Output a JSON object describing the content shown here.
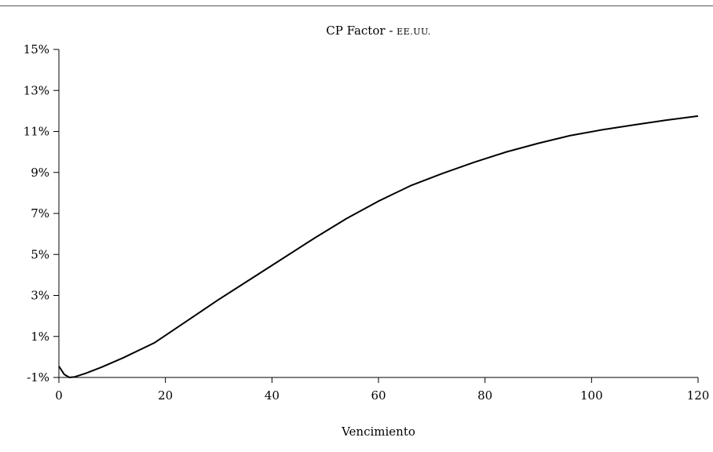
{
  "chart_data": {
    "type": "line",
    "title": "CP Factor",
    "title_separator": " - ",
    "title_suffix": "EE.UU.",
    "xlabel": "Vencimiento",
    "ylabel": "",
    "xlim": [
      0,
      120
    ],
    "ylim": [
      -1,
      15
    ],
    "x_ticks": [
      0,
      20,
      40,
      60,
      80,
      100,
      120
    ],
    "x_tick_labels": [
      "0",
      "20",
      "40",
      "60",
      "80",
      "100",
      "120"
    ],
    "y_ticks": [
      -1,
      1,
      3,
      5,
      7,
      9,
      11,
      13,
      15
    ],
    "y_tick_labels": [
      "-1%",
      "1%",
      "3%",
      "5%",
      "7%",
      "9%",
      "11%",
      "13%",
      "15%"
    ],
    "grid": false,
    "series": [
      {
        "color": "#000000",
        "x": [
          0,
          1,
          2,
          3,
          5,
          8,
          12,
          18,
          24,
          30,
          36,
          42,
          48,
          54,
          60,
          66,
          72,
          78,
          84,
          90,
          96,
          102,
          108,
          114,
          120
        ],
        "y": [
          -0.45,
          -0.85,
          -1.0,
          -0.97,
          -0.8,
          -0.5,
          -0.05,
          0.7,
          1.75,
          2.8,
          3.8,
          4.8,
          5.8,
          6.75,
          7.6,
          8.35,
          8.95,
          9.5,
          10.0,
          10.42,
          10.8,
          11.08,
          11.32,
          11.55,
          11.75
        ]
      }
    ]
  }
}
